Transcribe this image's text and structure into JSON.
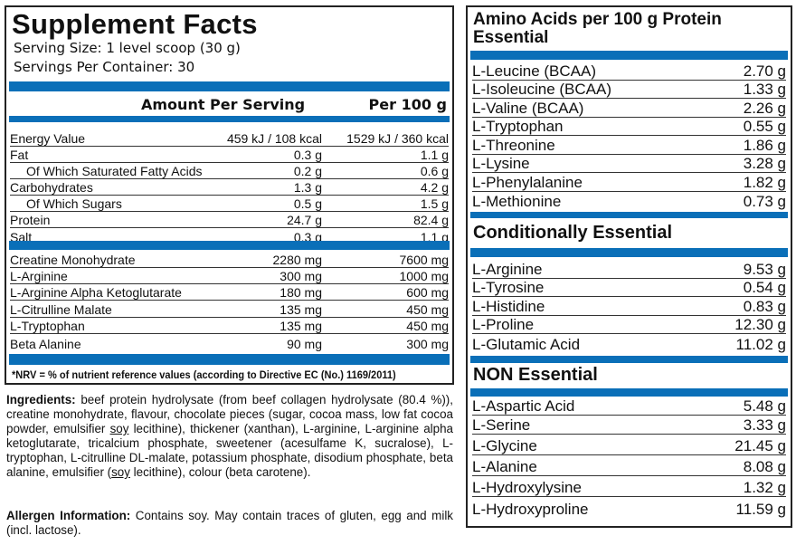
{
  "supplement_facts": {
    "title": "Supplement Facts",
    "serving_size": "Serving Size: 1 level scoop (30 g)",
    "servings_per_container": "Servings Per Container: 30",
    "col_per_serving": "Amount Per Serving",
    "col_per_100g": "Per 100 g",
    "nutrients": [
      {
        "name": "Energy Value",
        "serving": "459 kJ / 108 kcal",
        "per100": "1529 kJ / 360 kcal"
      },
      {
        "name": "Fat",
        "serving": "0.3 g",
        "per100": "1.1 g"
      },
      {
        "name": "Of Which Saturated Fatty Acids",
        "serving": "0.2 g",
        "per100": "0.6 g"
      },
      {
        "name": "Carbohydrates",
        "serving": "1.3 g",
        "per100": "4.2 g"
      },
      {
        "name": "Of Which Sugars",
        "serving": "0.5 g",
        "per100": "1.5 g"
      },
      {
        "name": "Protein",
        "serving": "24.7 g",
        "per100": "82.4 g"
      },
      {
        "name": "Salt",
        "serving": "0.3 g",
        "per100": "1.1 g"
      }
    ],
    "actives": [
      {
        "name": "Creatine Monohydrate",
        "serving": "2280 mg",
        "per100": "7600 mg"
      },
      {
        "name": "L-Arginine",
        "serving": "300 mg",
        "per100": "1000 mg"
      },
      {
        "name": "L-Arginine Alpha Ketoglutarate",
        "serving": "180 mg",
        "per100": "600 mg"
      },
      {
        "name": "L-Citrulline Malate",
        "serving": "135 mg",
        "per100": "450 mg"
      },
      {
        "name": "L-Tryptophan",
        "serving": "135 mg",
        "per100": "450 mg"
      },
      {
        "name": "Beta Alanine",
        "serving": "90 mg",
        "per100": "300 mg"
      }
    ],
    "nrv_note": "*NRV = % of nutrient reference values (according to Directive EC (No.) 1169/2011)"
  },
  "ingredients": {
    "label": "Ingredients:",
    "part1": " beef protein hydrolysate (from beef collagen hydrolysate (80.4 %)), creatine monohydrate, flavour, chocolate pieces (sugar, cocoa mass, low fat cocoa powder, emulsifier ",
    "soy": "soy",
    "part2": " lecithine), thickener (xanthan), L-arginine, L-arginine alpha ketoglutarate, tricalcium phosphate, sweetener (acesulfame K, sucralose), L-tryptophan, L-citrulline DL-malate, potassium phosphate, disodium phosphate, beta alanine, emulsifier (",
    "part3": " lecithine), colour (beta carotene)."
  },
  "allergen": {
    "label": "Allergen Information:",
    "text": " Contains soy. May contain traces of gluten, egg and milk (incl. lactose)."
  },
  "amino": {
    "title1": "Amino Acids per 100 g Protein",
    "title2": "Essential",
    "essential": [
      {
        "name": "L-Leucine (BCAA)",
        "value": "2.70 g"
      },
      {
        "name": "L-Isoleucine (BCAA)",
        "value": "1.33 g"
      },
      {
        "name": "L-Valine (BCAA)",
        "value": "2.26 g"
      },
      {
        "name": "L-Tryptophan",
        "value": "0.55 g"
      },
      {
        "name": "L-Threonine",
        "value": "1.86 g"
      },
      {
        "name": "L-Lysine",
        "value": "3.28 g"
      },
      {
        "name": "L-Phenylalanine",
        "value": "1.82 g"
      },
      {
        "name": "L-Methionine",
        "value": "0.73 g"
      }
    ],
    "conditional_title": "Conditionally Essential",
    "conditional": [
      {
        "name": "L-Arginine",
        "value": "9.53 g"
      },
      {
        "name": "L-Tyrosine",
        "value": "0.54 g"
      },
      {
        "name": "L-Histidine",
        "value": "0.83 g"
      },
      {
        "name": "L-Proline",
        "value": "12.30 g"
      },
      {
        "name": "L-Glutamic Acid",
        "value": "11.02 g"
      }
    ],
    "non_title": "NON Essential",
    "non": [
      {
        "name": "L-Aspartic Acid",
        "value": "5.48 g"
      },
      {
        "name": "L-Serine",
        "value": "3.33 g"
      },
      {
        "name": "L-Glycine",
        "value": "21.45 g"
      },
      {
        "name": "L-Alanine",
        "value": "8.08 g"
      },
      {
        "name": "L-Hydroxylysine",
        "value": "1.32 g"
      },
      {
        "name": "L-Hydroxyproline",
        "value": "11.59 g"
      }
    ]
  },
  "colors": {
    "accent_blue": "#0a6fb8"
  }
}
